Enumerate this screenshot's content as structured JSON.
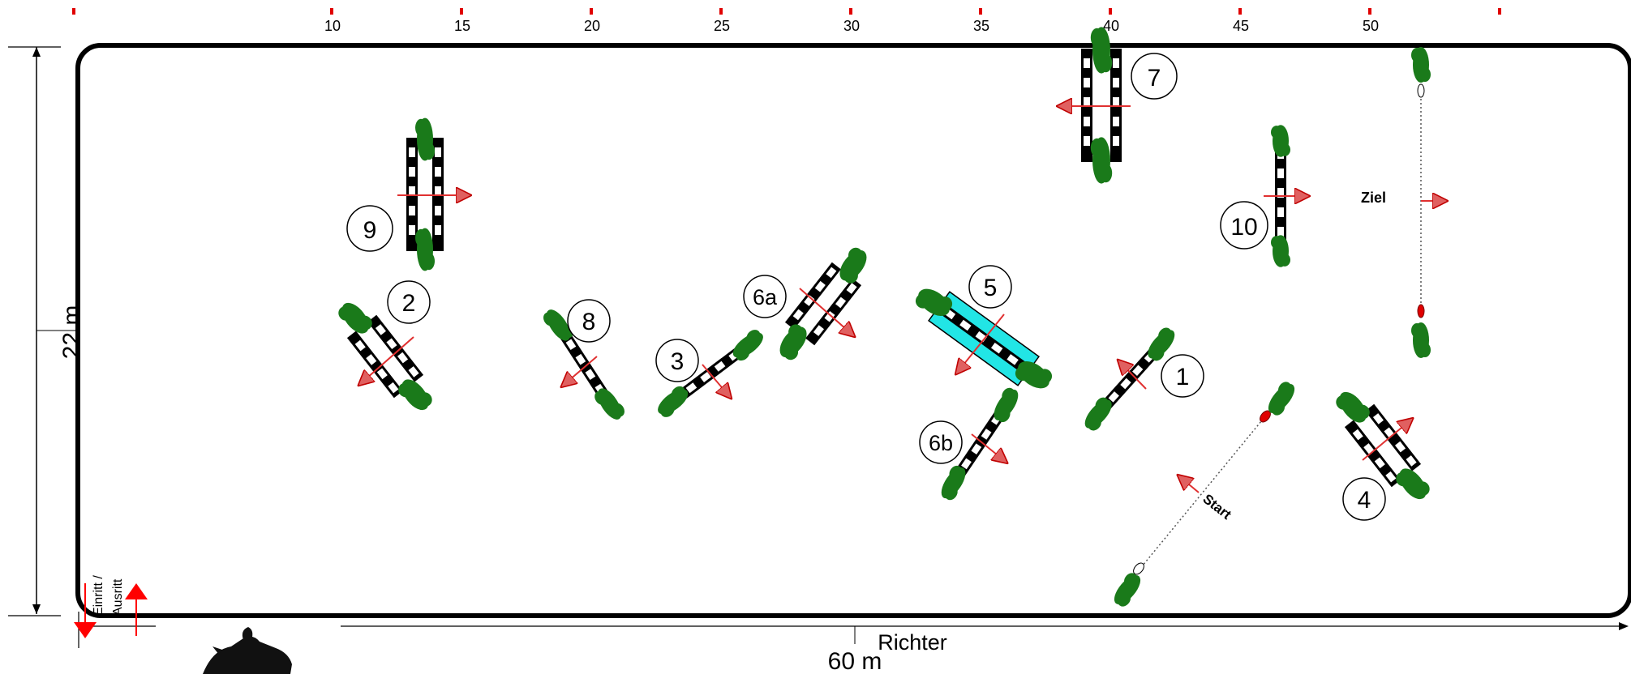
{
  "ruler": {
    "ticks": [
      "10",
      "15",
      "20",
      "25",
      "30",
      "35",
      "40",
      "45",
      "50"
    ],
    "tick_color": "#e00000"
  },
  "arena": {
    "width_label": "60 m",
    "height_label": "22 m",
    "judge_label": "Richter",
    "entry_label_line1": "Einritt /",
    "entry_label_line2": "Ausritt"
  },
  "start_line": {
    "label": "Start"
  },
  "finish_line": {
    "label": "Ziel"
  },
  "obstacles": [
    {
      "number": "1",
      "type": "vertical"
    },
    {
      "number": "2",
      "type": "oxer"
    },
    {
      "number": "3",
      "type": "vertical"
    },
    {
      "number": "4",
      "type": "oxer"
    },
    {
      "number": "5",
      "type": "water oxer"
    },
    {
      "number": "6a",
      "type": "oxer"
    },
    {
      "number": "6b",
      "type": "vertical"
    },
    {
      "number": "7",
      "type": "oxer"
    },
    {
      "number": "8",
      "type": "vertical"
    },
    {
      "number": "9",
      "type": "oxer"
    },
    {
      "number": "10",
      "type": "vertical"
    }
  ],
  "colors": {
    "foliage": "#1a7a1a",
    "arrow": "#e03030",
    "water": "#22e5e5",
    "pole_dark": "#000000",
    "pole_light": "#ffffff"
  }
}
